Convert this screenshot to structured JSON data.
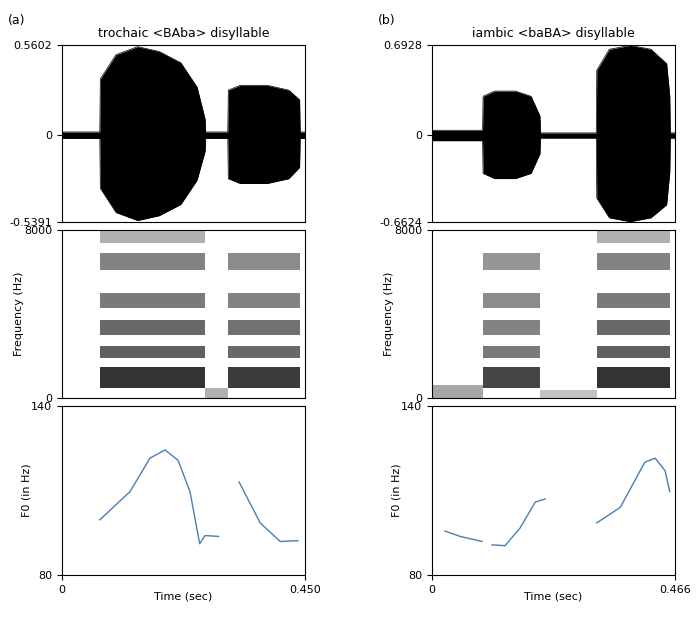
{
  "chart_data": [
    {
      "type": "waveform",
      "label": "(a)",
      "title": "trochaic <BAba> disyllable",
      "x": [
        0,
        0.07,
        0.071,
        0.1,
        0.14,
        0.18,
        0.22,
        0.25,
        0.265,
        0.266,
        0.307,
        0.308,
        0.33,
        0.38,
        0.42,
        0.44,
        0.441,
        0.45
      ],
      "values": [
        0.02,
        0.02,
        0.35,
        0.5,
        0.55,
        0.52,
        0.45,
        0.3,
        0.1,
        0.02,
        0.02,
        0.28,
        0.31,
        0.31,
        0.28,
        0.22,
        0.02,
        0.02
      ],
      "lower_values": [
        -0.02,
        -0.02,
        -0.33,
        -0.48,
        -0.53,
        -0.5,
        -0.43,
        -0.28,
        -0.1,
        -0.02,
        -0.02,
        -0.27,
        -0.3,
        -0.3,
        -0.27,
        -0.2,
        -0.02,
        -0.02
      ],
      "xlim": [
        0,
        0.45
      ],
      "ylim": [
        -0.5391,
        0.5602
      ],
      "yticks": [
        -0.5391,
        0,
        0.5602
      ],
      "tick_labels": "y",
      "color": "#000000"
    },
    {
      "type": "spectrogram",
      "y_label": "Frequency (Hz)",
      "segments": [
        {
          "start": 0.07,
          "end": 0.265,
          "bands": [
            [
              500,
              1500,
              1.0
            ],
            [
              1900,
              2500,
              0.75
            ],
            [
              3000,
              3700,
              0.7
            ],
            [
              4300,
              5000,
              0.6
            ],
            [
              6100,
              6900,
              0.55
            ],
            [
              7400,
              8000,
              0.3
            ]
          ]
        },
        {
          "start": 0.265,
          "end": 0.307,
          "bands": [
            [
              0,
              500,
              0.3
            ]
          ]
        },
        {
          "start": 0.307,
          "end": 0.44,
          "bands": [
            [
              500,
              1500,
              0.95
            ],
            [
              1900,
              2500,
              0.7
            ],
            [
              3000,
              3700,
              0.65
            ],
            [
              4300,
              5000,
              0.55
            ],
            [
              6100,
              6900,
              0.5
            ]
          ]
        }
      ],
      "xlim": [
        0,
        0.45
      ],
      "ylim": [
        0,
        8000
      ],
      "yticks": [
        0,
        8000
      ],
      "tick_labels": "y",
      "color": "#000000"
    },
    {
      "type": "line",
      "x_label": "Time (sec)",
      "y_label": "F0 (in Hz)",
      "x": [
        0.07,
        0.126,
        0.163,
        0.191,
        0.215,
        0.237,
        0.255,
        0.265,
        0.29,
        0.3,
        0.328,
        0.367,
        0.404,
        0.437
      ],
      "values": [
        99.6,
        109.6,
        121.5,
        124.4,
        120.7,
        109.6,
        91.1,
        94.0,
        93.7,
        null,
        113.0,
        98.5,
        91.9,
        92.2
      ],
      "xlim": [
        0,
        0.45
      ],
      "ylim": [
        80,
        140
      ],
      "yticks": [
        80,
        140
      ],
      "xticks": [
        0,
        {
          "value": 0.45,
          "label": "0.450"
        }
      ],
      "color": "#4a7fb5"
    },
    {
      "type": "waveform",
      "label": "(b)",
      "title": "iambic <baBA> disyllable",
      "x": [
        0,
        0.097,
        0.098,
        0.12,
        0.16,
        0.19,
        0.207,
        0.208,
        0.315,
        0.316,
        0.34,
        0.38,
        0.42,
        0.45,
        0.456,
        0.457,
        0.466
      ],
      "values": [
        0.04,
        0.04,
        0.3,
        0.34,
        0.34,
        0.3,
        0.15,
        0.02,
        0.02,
        0.5,
        0.66,
        0.69,
        0.66,
        0.55,
        0.3,
        0.02,
        0.02
      ],
      "lower_values": [
        -0.04,
        -0.04,
        -0.29,
        -0.33,
        -0.33,
        -0.29,
        -0.14,
        -0.02,
        -0.02,
        -0.48,
        -0.63,
        -0.66,
        -0.63,
        -0.53,
        -0.28,
        -0.02,
        -0.02
      ],
      "xlim": [
        0,
        0.466
      ],
      "ylim": [
        -0.6624,
        0.6928
      ],
      "yticks": [
        -0.6624,
        0,
        0.6928
      ],
      "tick_labels": "y",
      "color": "#000000"
    },
    {
      "type": "spectrogram",
      "y_label": "Frequency (Hz)",
      "segments": [
        {
          "start": 0.0,
          "end": 0.098,
          "bands": [
            [
              0,
              600,
              0.35
            ]
          ]
        },
        {
          "start": 0.098,
          "end": 0.207,
          "bands": [
            [
              500,
              1500,
              0.9
            ],
            [
              1900,
              2500,
              0.6
            ],
            [
              3000,
              3700,
              0.55
            ],
            [
              4300,
              5000,
              0.5
            ],
            [
              6100,
              6900,
              0.45
            ]
          ]
        },
        {
          "start": 0.207,
          "end": 0.316,
          "bands": [
            [
              0,
              400,
              0.2
            ]
          ]
        },
        {
          "start": 0.316,
          "end": 0.456,
          "bands": [
            [
              500,
              1500,
              1.0
            ],
            [
              1900,
              2500,
              0.75
            ],
            [
              3000,
              3700,
              0.7
            ],
            [
              4300,
              5000,
              0.6
            ],
            [
              6100,
              6900,
              0.55
            ],
            [
              7400,
              8000,
              0.3
            ]
          ]
        }
      ],
      "xlim": [
        0,
        0.466
      ],
      "ylim": [
        0,
        8000
      ],
      "yticks": [
        0,
        8000
      ],
      "tick_labels": "y",
      "color": "#000000"
    },
    {
      "type": "line",
      "x_label": "Time (sec)",
      "y_label": "F0 (in Hz)",
      "x": [
        0.025,
        0.054,
        0.096,
        0.105,
        0.115,
        0.14,
        0.169,
        0.198,
        0.217,
        0.26,
        0.316,
        0.361,
        0.408,
        0.428,
        0.447,
        0.456
      ],
      "values": [
        95.6,
        93.7,
        91.9,
        null,
        90.7,
        90.4,
        96.7,
        105.9,
        107.0,
        null,
        98.5,
        104.0,
        120.0,
        121.5,
        117.0,
        109.6
      ],
      "xlim": [
        0,
        0.466
      ],
      "ylim": [
        80,
        140
      ],
      "yticks": [
        80,
        140
      ],
      "xticks": [
        0,
        0.466
      ],
      "color": "#4a7fb5"
    }
  ]
}
